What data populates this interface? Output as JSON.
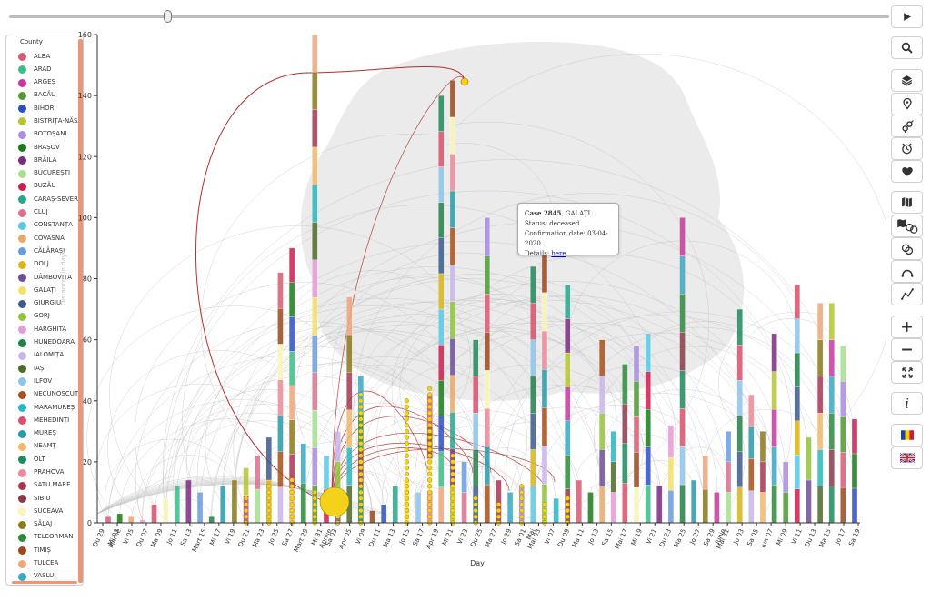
{
  "timeline": {
    "position": 0.18
  },
  "legend": {
    "title": "County",
    "items": [
      {
        "label": "ALBA",
        "color": "#d95b73"
      },
      {
        "label": "ARAD",
        "color": "#3ebd86"
      },
      {
        "label": "ARGEȘ",
        "color": "#c23b9a"
      },
      {
        "label": "BACĂU",
        "color": "#4f9a33"
      },
      {
        "label": "BIHOR",
        "color": "#2d4fc2"
      },
      {
        "label": "BISTRIȚA-NĂSĂUD",
        "color": "#b5c533"
      },
      {
        "label": "BOTOȘANI",
        "color": "#a98de0"
      },
      {
        "label": "BRAȘOV",
        "color": "#1b7a1b"
      },
      {
        "label": "BRĂILA",
        "color": "#7b2c7e"
      },
      {
        "label": "BUCUREȘTI",
        "color": "#a6e08f"
      },
      {
        "label": "BUZĂU",
        "color": "#c8204f"
      },
      {
        "label": "CARAȘ-SEVERIN",
        "color": "#2aa68a"
      },
      {
        "label": "CLUJ",
        "color": "#d8738f"
      },
      {
        "label": "CONSTANȚA",
        "color": "#5ac8e6"
      },
      {
        "label": "COVASNA",
        "color": "#e8a86a"
      },
      {
        "label": "CĂLĂRAȘI",
        "color": "#6a9ce0"
      },
      {
        "label": "DOLJ",
        "color": "#d9b51b"
      },
      {
        "label": "DÂMBOVIȚA",
        "color": "#6d4e98"
      },
      {
        "label": "GALAȚI",
        "color": "#f3e16a"
      },
      {
        "label": "GIURGIU",
        "color": "#3c5a8a"
      },
      {
        "label": "GORJ",
        "color": "#93c23b"
      },
      {
        "label": "HARGHITA",
        "color": "#e89ad6"
      },
      {
        "label": "HUNEDOARA",
        "color": "#23804a"
      },
      {
        "label": "IALOMIȚA",
        "color": "#c7b6ea"
      },
      {
        "label": "IAȘI",
        "color": "#4d6b2a"
      },
      {
        "label": "ILFOV",
        "color": "#8ec4ea"
      },
      {
        "label": "NECUNOSCUT",
        "color": "#a8501a"
      },
      {
        "label": "MARAMUREȘ",
        "color": "#2ab7c2"
      },
      {
        "label": "MEHEDINȚI",
        "color": "#d9506a"
      },
      {
        "label": "MUREȘ",
        "color": "#2a9aa8"
      },
      {
        "label": "NEAMȚ",
        "color": "#efb86a"
      },
      {
        "label": "OLT",
        "color": "#1f8a5e"
      },
      {
        "label": "PRAHOVA",
        "color": "#ec8a9a"
      },
      {
        "label": "SATU MARE",
        "color": "#a7364f"
      },
      {
        "label": "SIBIU",
        "color": "#8a3a4a"
      },
      {
        "label": "SUCEAVA",
        "color": "#f7f5b8"
      },
      {
        "label": "SĂLAJ",
        "color": "#8a7a1a"
      },
      {
        "label": "TELEORMAN",
        "color": "#2e8a3e"
      },
      {
        "label": "TIMIȘ",
        "color": "#9a4a1e"
      },
      {
        "label": "TULCEA",
        "color": "#eda77c"
      },
      {
        "label": "VASLUI",
        "color": "#3aa8c2"
      }
    ]
  },
  "tooltip": {
    "case": "Case 2845",
    "county": ", GALAȚI.",
    "status": "Status: deceased.",
    "confirmation": "Confirmation date: 03-04-2020.",
    "details_label": "Details: ",
    "details_link": "here"
  },
  "toolbar": {
    "buttons": [
      {
        "name": "play-button",
        "icon": "play-icon"
      },
      {
        "name": "search-button",
        "icon": "search-icon"
      },
      {
        "name": "layers-button",
        "icon": "layers-icon"
      },
      {
        "name": "location-button",
        "icon": "map-pin-icon"
      },
      {
        "name": "gender-button",
        "icon": "gender-icon"
      },
      {
        "name": "age-button",
        "icon": "alarm-clock-icon"
      },
      {
        "name": "health-button",
        "icon": "heart-icon"
      },
      {
        "name": "map-button",
        "icon": "map-icon"
      },
      {
        "name": "map-cluster-button",
        "icon": "map-circles-icon"
      },
      {
        "name": "clusters-button",
        "icon": "circles-icon"
      },
      {
        "name": "arcs-button",
        "icon": "arc-icon"
      },
      {
        "name": "timeline-chart-button",
        "icon": "line-chart-icon"
      },
      {
        "name": "zoom-in-button",
        "icon": "plus-icon"
      },
      {
        "name": "zoom-out-button",
        "icon": "minus-icon"
      },
      {
        "name": "fit-screen-button",
        "icon": "expand-icon"
      },
      {
        "name": "info-button",
        "icon": "info-icon"
      },
      {
        "name": "lang-ro-button",
        "icon": "romania-flag-icon"
      },
      {
        "name": "lang-en-button",
        "icon": "uk-flag-icon"
      }
    ]
  },
  "chart_data": {
    "type": "scatter",
    "title": "",
    "xlabel": "Day",
    "ylabel": "Distance (in days) ...",
    "ylim": [
      0,
      160
    ],
    "yticks": [
      0,
      20,
      40,
      60,
      80,
      100,
      120,
      140,
      160
    ],
    "x_month_labels": [
      "Martie",
      "Aprilie",
      "Mai",
      "Iunie"
    ],
    "categories": [
      "Du 29",
      "Mi 03",
      "Vi 05",
      "Du 07",
      "Ma 09",
      "Jo 11",
      "Sa 13",
      "Mart 15",
      "Mi 17",
      "Vi 19",
      "Du 21",
      "Ma 23",
      "Jo 25",
      "Sa 27",
      "Mart 29",
      "Mi 31",
      "Sa 03",
      "Apr 05",
      "Vi 09",
      "Du 11",
      "Ma 13",
      "Jo 15",
      "Sa 17",
      "Apr 19",
      "Mi 21",
      "Vi 23",
      "Du 25",
      "Ma 27",
      "Jo 29",
      "Sa 01",
      "Mai 03",
      "Vi 07",
      "Du 09",
      "Ma 11",
      "Jo 13",
      "Sa 15",
      "Mai 17",
      "Mi 19",
      "Vi 21",
      "Du 23",
      "Ma 25",
      "Jo 27",
      "Sa 29",
      "Mai 31",
      "Jo 03",
      "Sa 05",
      "Iun 07",
      "Mi 09",
      "Vi 11",
      "Du 13",
      "Ma 15",
      "Jo 17",
      "Sa 19"
    ],
    "column_heights": [
      2,
      3,
      2,
      1,
      6,
      8,
      12,
      14,
      10,
      2,
      12,
      14,
      18,
      22,
      28,
      82,
      90,
      26,
      160,
      22,
      30,
      74,
      48,
      4,
      6,
      12,
      14,
      10,
      42,
      140,
      145,
      20,
      60,
      100,
      14,
      10,
      12,
      84,
      88,
      8,
      78,
      14,
      10,
      60,
      30,
      52,
      58,
      62,
      12,
      32,
      100,
      14,
      22,
      10,
      30,
      70,
      42,
      30,
      62,
      20,
      78,
      28,
      72,
      72,
      58,
      34
    ],
    "highlight_series": "GALAȚI",
    "highlight_values": [
      8,
      12,
      14,
      10,
      9,
      42,
      40,
      44,
      22,
      8,
      6,
      12,
      6,
      8
    ],
    "grid": false,
    "legend_position": "left"
  }
}
